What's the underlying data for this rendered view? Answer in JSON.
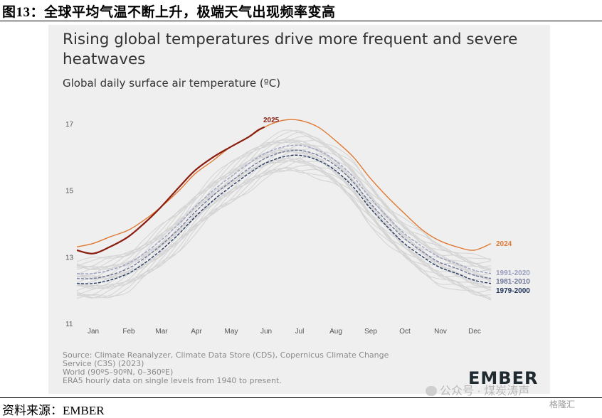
{
  "figure": {
    "caption": "图13：全球平均气温不断上升，极端天气出现频率变高",
    "source_note": "资料来源：EMBER"
  },
  "chart_data": {
    "type": "line",
    "title": "Rising global temperatures drive more frequent and severe heatwaves",
    "subtitle": "Global daily surface air temperature (ºC)",
    "xlabel": "",
    "ylabel": "",
    "x_ticks": [
      "Jan",
      "Feb",
      "Mar",
      "Apr",
      "May",
      "Jun",
      "Jul",
      "Aug",
      "Sep",
      "Oct",
      "Nov",
      "Dec"
    ],
    "y_ticks": [
      11,
      13,
      15,
      17
    ],
    "ylim": [
      11,
      17.3
    ],
    "x_unit": "day of year",
    "grid": false,
    "series": [
      {
        "name": "2025",
        "color": "#8b1d10",
        "style": "solid",
        "x": [
          1,
          15,
          30,
          46,
          60,
          75,
          91,
          105,
          121,
          136,
          152,
          160,
          166
        ],
        "y": [
          13.2,
          13.1,
          13.3,
          13.6,
          14.0,
          14.5,
          15.1,
          15.6,
          16.0,
          16.3,
          16.6,
          16.8,
          16.9
        ]
      },
      {
        "name": "2024",
        "color": "#e07a33",
        "style": "solid",
        "x": [
          1,
          15,
          30,
          46,
          60,
          75,
          91,
          105,
          121,
          136,
          152,
          166,
          182,
          197,
          213,
          228,
          244,
          258,
          274,
          289,
          305,
          319,
          335,
          350,
          365
        ],
        "y": [
          13.3,
          13.4,
          13.6,
          13.8,
          14.1,
          14.5,
          15.0,
          15.5,
          15.9,
          16.3,
          16.6,
          16.9,
          17.1,
          17.1,
          16.9,
          16.5,
          16.0,
          15.4,
          14.8,
          14.3,
          13.8,
          13.5,
          13.3,
          13.2,
          13.4
        ]
      },
      {
        "name": "1991-2020",
        "color": "#9aa0bf",
        "style": "dashed",
        "x": [
          1,
          15,
          30,
          46,
          60,
          75,
          91,
          105,
          121,
          136,
          152,
          166,
          182,
          197,
          213,
          228,
          244,
          258,
          274,
          289,
          305,
          319,
          335,
          350,
          365
        ],
        "y": [
          12.5,
          12.5,
          12.6,
          12.8,
          13.1,
          13.5,
          14.0,
          14.5,
          15.0,
          15.4,
          15.8,
          16.1,
          16.3,
          16.35,
          16.2,
          15.9,
          15.4,
          14.8,
          14.2,
          13.7,
          13.3,
          13.0,
          12.8,
          12.6,
          12.5
        ]
      },
      {
        "name": "1981-2010",
        "color": "#6e7598",
        "style": "dashed",
        "x": [
          1,
          15,
          30,
          46,
          60,
          75,
          91,
          105,
          121,
          136,
          152,
          166,
          182,
          197,
          213,
          228,
          244,
          258,
          274,
          289,
          305,
          319,
          335,
          350,
          365
        ],
        "y": [
          12.35,
          12.35,
          12.45,
          12.65,
          12.95,
          13.35,
          13.85,
          14.35,
          14.85,
          15.25,
          15.65,
          15.95,
          16.15,
          16.2,
          16.05,
          15.75,
          15.25,
          14.65,
          14.05,
          13.55,
          13.15,
          12.85,
          12.65,
          12.45,
          12.35
        ]
      },
      {
        "name": "1979-2000",
        "color": "#24375e",
        "style": "dashed",
        "x": [
          1,
          15,
          30,
          46,
          60,
          75,
          91,
          105,
          121,
          136,
          152,
          166,
          182,
          197,
          213,
          228,
          244,
          258,
          274,
          289,
          305,
          319,
          335,
          350,
          365
        ],
        "y": [
          12.2,
          12.2,
          12.3,
          12.5,
          12.8,
          13.2,
          13.7,
          14.2,
          14.7,
          15.1,
          15.5,
          15.8,
          16.0,
          16.05,
          15.9,
          15.6,
          15.1,
          14.5,
          13.9,
          13.4,
          13.0,
          12.7,
          12.5,
          12.3,
          12.2
        ]
      }
    ]
  },
  "footer": {
    "source_lines": [
      "Source: Climate Reanalyzer, Climate Data Store (CDS), Copernicus Climate Change",
      "Service (C3S) (2023)",
      "World (90ºS–90ºN, 0–360ºE)",
      "ERA5 hourly data on single levels from 1940 to present."
    ],
    "brand": "EMBER"
  },
  "watermark": {
    "text": "公众号 · 煤炭涛声",
    "badge": "格隆汇"
  }
}
